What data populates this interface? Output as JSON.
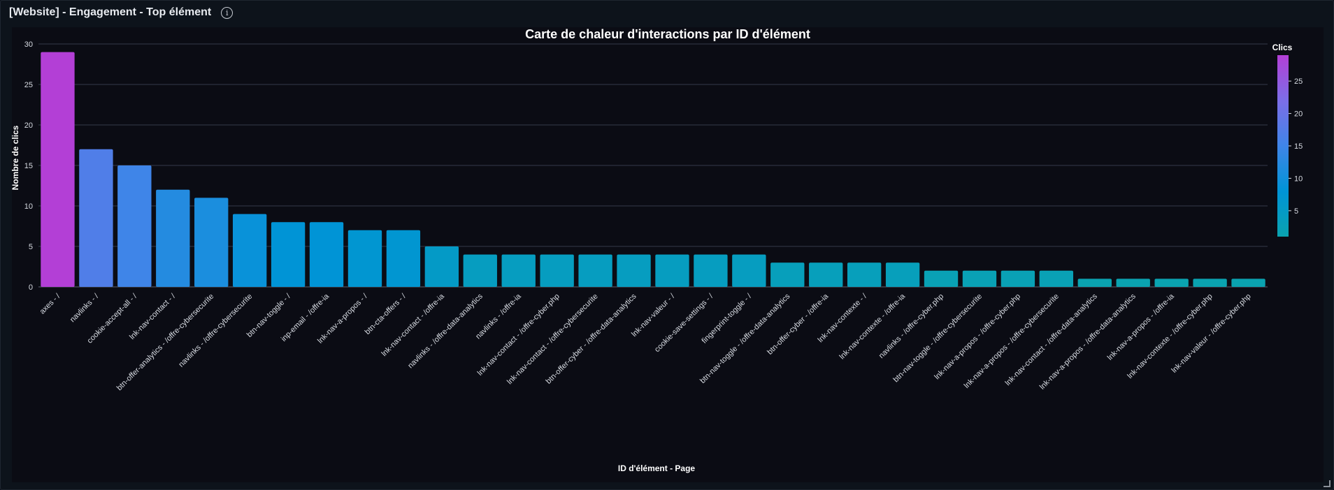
{
  "panel": {
    "title": "[Website] - Engagement - Top élément",
    "info_icon": "info-icon"
  },
  "chart_data": {
    "type": "bar",
    "title": "Carte de chaleur d'interactions par ID d'élément",
    "xlabel": "ID d'élément - Page",
    "ylabel": "Nombre de clics",
    "ylim": [
      0,
      30
    ],
    "yticks": [
      0,
      5,
      10,
      15,
      20,
      25,
      30
    ],
    "grid": true,
    "categories": [
      "axes - /",
      "navlinks - /",
      "cookie-accept-all - /",
      "lnk-nav-contact - /",
      "btn-offer-analytics - /offre-cybersecurite",
      "navlinks - /offre-cybersecurite",
      "btn-nav-toggle - /",
      "inp-email - /offre-ia",
      "lnk-nav-a-propos - /",
      "btn-cta-offers - /",
      "lnk-nav-contact - /offre-ia",
      "navlinks - /offre-data-analytics",
      "navlinks - /offre-ia",
      "lnk-nav-contact - /offre-cyber.php",
      "lnk-nav-contact - /offre-cybersecurite",
      "btn-offer-cyber - /offre-data-analytics",
      "lnk-nav-valeur - /",
      "cookie-save-settings - /",
      "fingerprint-toggle - /",
      "btn-nav-toggle - /offre-data-analytics",
      "btn-offer-cyber - /offre-ia",
      "lnk-nav-contexte - /",
      "lnk-nav-contexte - /offre-ia",
      "navlinks - /offre-cyber.php",
      "btn-nav-toggle - /offre-cybersecurite",
      "lnk-nav-a-propos - /offre-cyber.php",
      "lnk-nav-a-propos - /offre-cybersecurite",
      "lnk-nav-contact - /offre-data-analytics",
      "lnk-nav-a-propos - /offre-data-analytics",
      "lnk-nav-a-propos - /offre-ia",
      "lnk-nav-contexte - /offre-cyber.php",
      "lnk-nav-valeur - /offre-cyber.php"
    ],
    "values": [
      29,
      17,
      15,
      12,
      11,
      9,
      8,
      8,
      7,
      7,
      5,
      4,
      4,
      4,
      4,
      4,
      4,
      4,
      4,
      3,
      3,
      3,
      3,
      2,
      2,
      2,
      2,
      1,
      1,
      1,
      1,
      1
    ],
    "colorbar": {
      "title": "Clics",
      "ticks": [
        5,
        10,
        15,
        20,
        25
      ],
      "range": [
        1,
        29
      ],
      "colors": [
        "#0aa3b0",
        "#0094d6",
        "#3f85e8",
        "#7c6ee8",
        "#b33fd6"
      ]
    }
  }
}
